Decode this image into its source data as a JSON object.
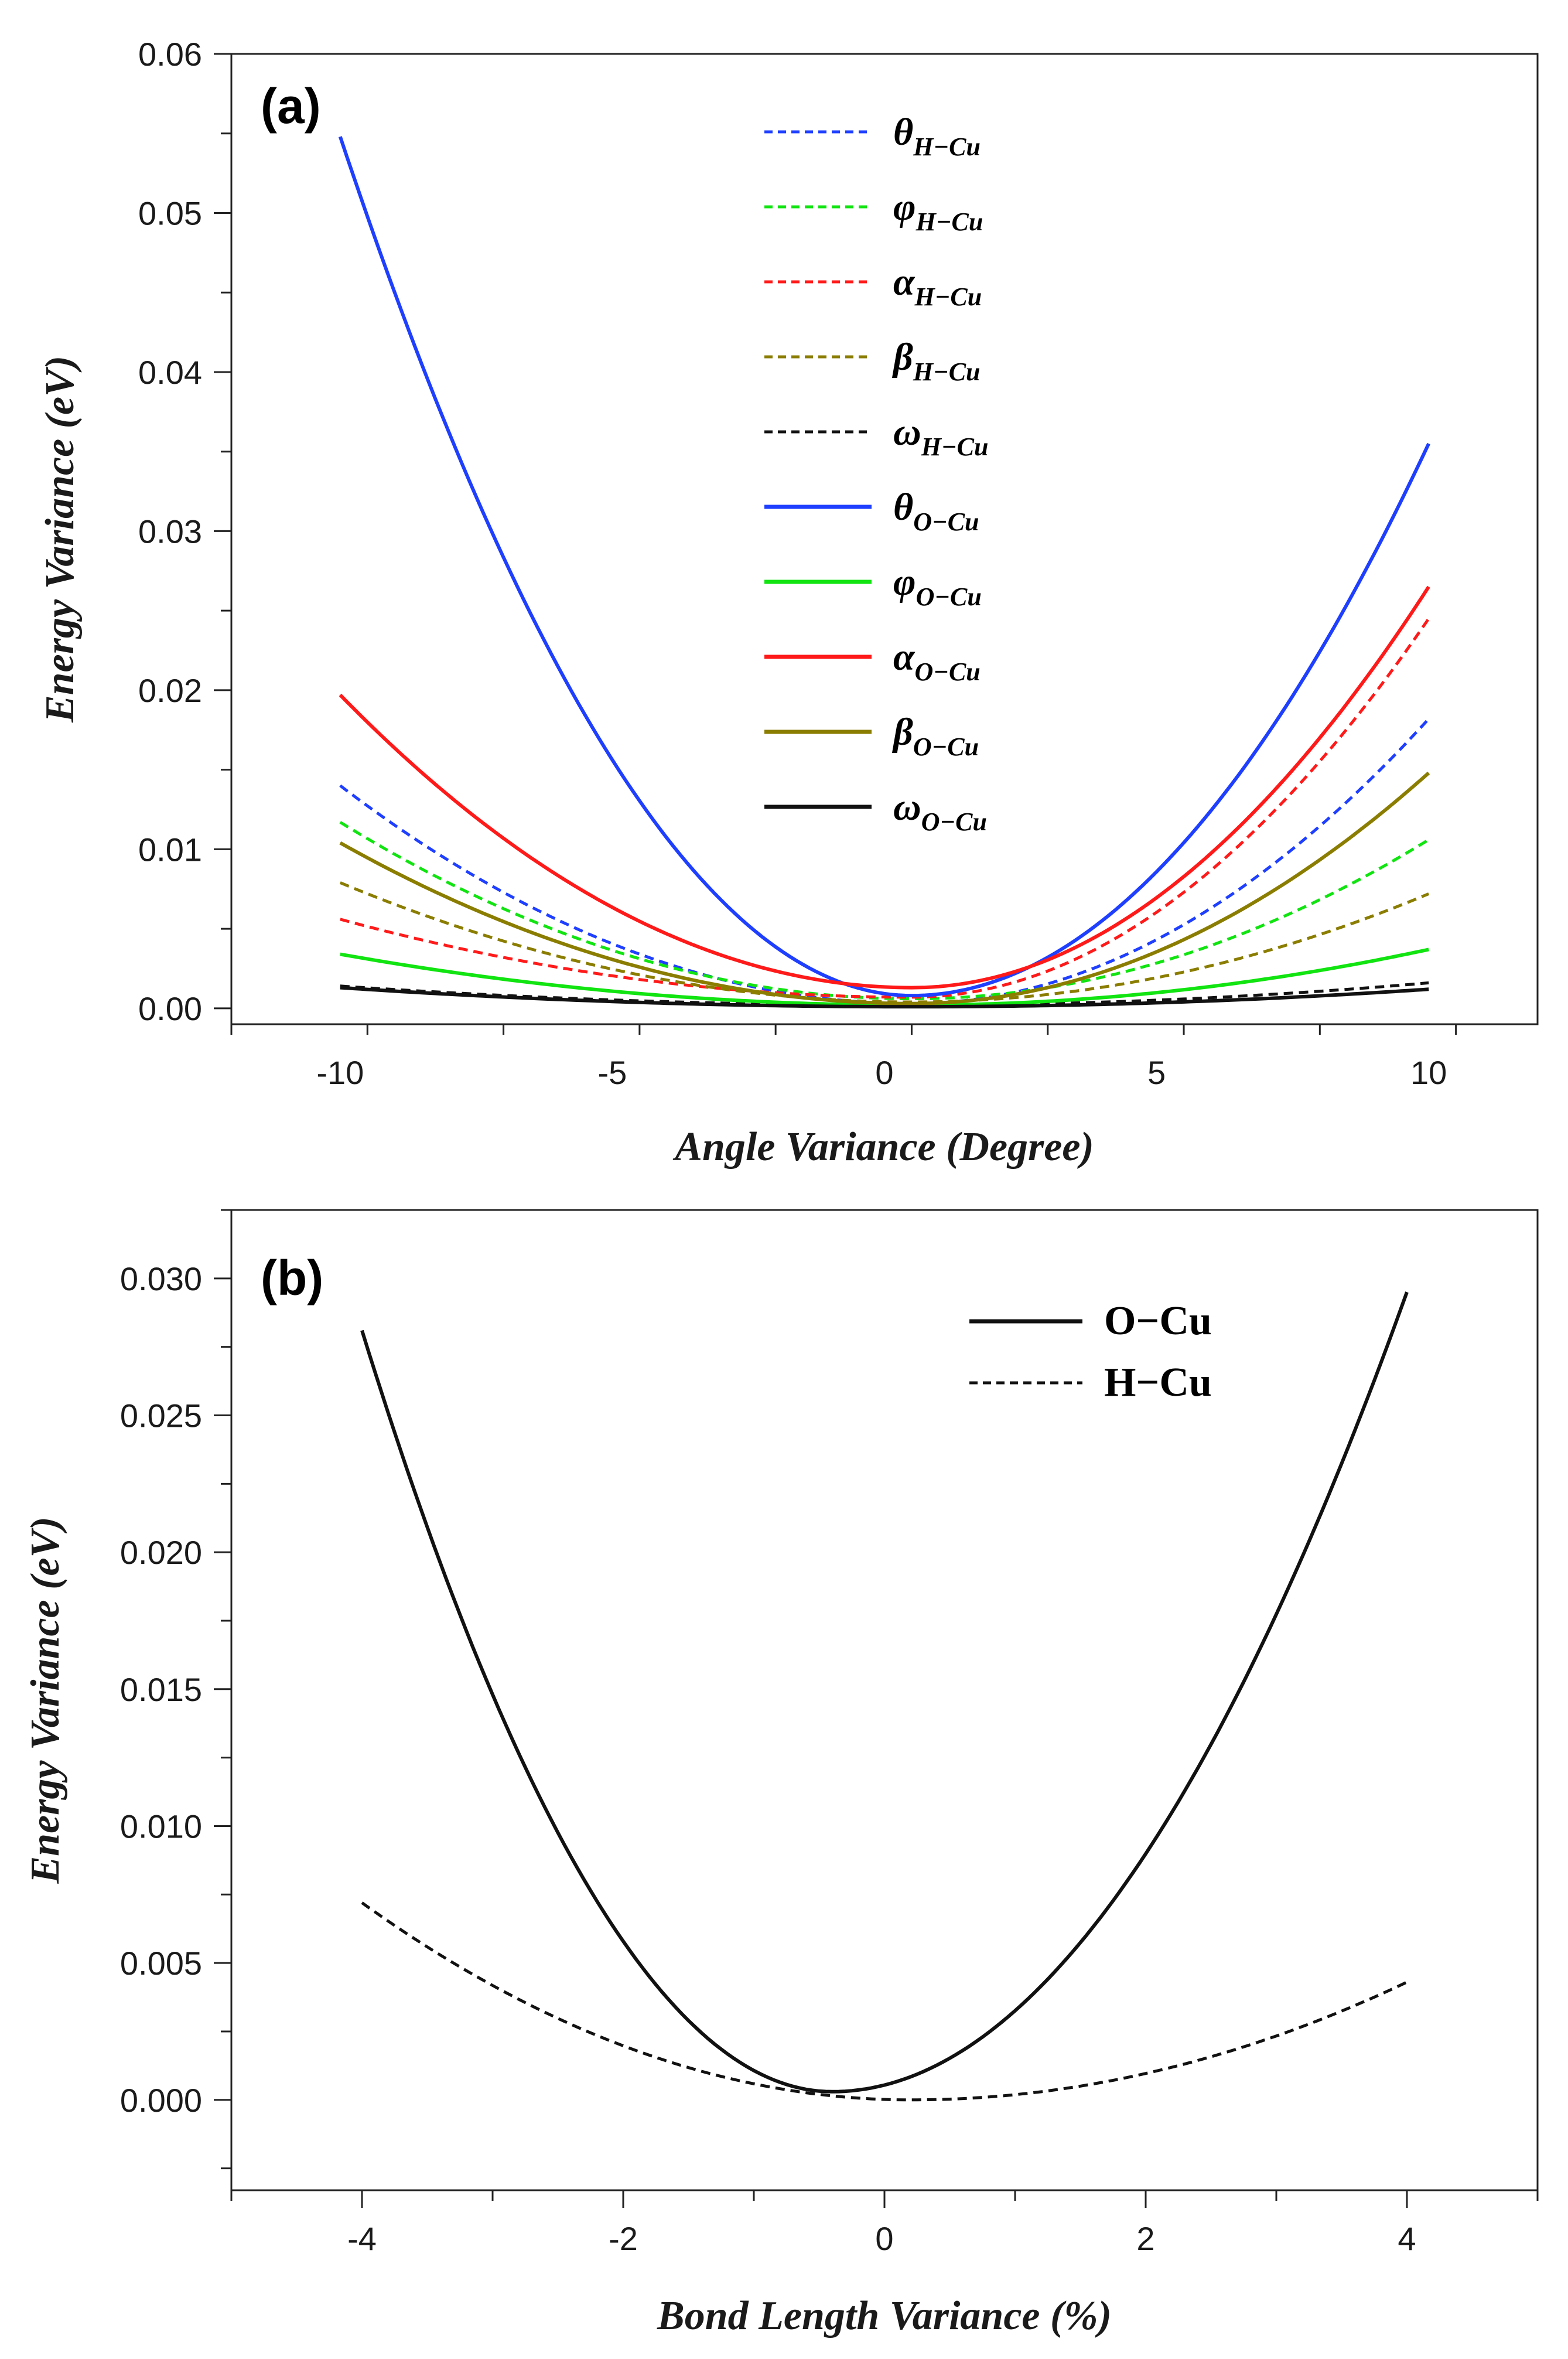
{
  "chart_data": [
    {
      "id": "a",
      "type": "line",
      "panel_label": "(a)",
      "xlabel": "Angle Variance (Degree)",
      "ylabel": "Energy Variance (eV)",
      "xlim": [
        -12,
        12
      ],
      "ylim": [
        -0.001,
        0.06
      ],
      "x_ticks": [
        -10,
        -5,
        0,
        5,
        10
      ],
      "x_tick_labels": [
        "-10",
        "-5",
        "0",
        "5",
        "10"
      ],
      "y_ticks": [
        0,
        0.01,
        0.02,
        0.03,
        0.04,
        0.05,
        0.06
      ],
      "y_tick_labels": [
        "0.00",
        "0.01",
        "0.02",
        "0.03",
        "0.04",
        "0.05",
        "0.06"
      ],
      "legend_position": "top-center",
      "series": [
        {
          "name": "θ",
          "subscript": "H−Cu",
          "color": "#1f3fff",
          "dash": true,
          "points": [
            [
              -10,
              0.014
            ],
            [
              0.5,
              0.0003
            ],
            [
              10,
              0.0182
            ]
          ]
        },
        {
          "name": "φ",
          "subscript": "H−Cu",
          "color": "#11e411",
          "dash": true,
          "points": [
            [
              -10,
              0.0117
            ],
            [
              0.5,
              0.0006
            ],
            [
              10,
              0.0106
            ]
          ]
        },
        {
          "name": "α",
          "subscript": "H−Cu",
          "color": "#ff1a1a",
          "dash": true,
          "points": [
            [
              -10,
              0.0056
            ],
            [
              0.5,
              0.0007
            ],
            [
              10,
              0.0245
            ]
          ]
        },
        {
          "name": "β",
          "subscript": "H−Cu",
          "color": "#8a7d00",
          "dash": true,
          "points": [
            [
              -10,
              0.0079
            ],
            [
              0.5,
              0.0004
            ],
            [
              10,
              0.0072
            ]
          ]
        },
        {
          "name": "ω",
          "subscript": "H−Cu",
          "color": "#111111",
          "dash": true,
          "points": [
            [
              -10,
              0.0014
            ],
            [
              0.5,
              0.0002
            ],
            [
              10,
              0.0016
            ]
          ]
        },
        {
          "name": "θ",
          "subscript": "O−Cu",
          "color": "#1f3fff",
          "dash": false,
          "points": [
            [
              -10,
              0.0548
            ],
            [
              0.5,
              0.0008
            ],
            [
              10,
              0.0355
            ]
          ]
        },
        {
          "name": "φ",
          "subscript": "O−Cu",
          "color": "#11e411",
          "dash": false,
          "points": [
            [
              -10,
              0.0034
            ],
            [
              0.5,
              0.0002
            ],
            [
              10,
              0.0037
            ]
          ]
        },
        {
          "name": "α",
          "subscript": "O−Cu",
          "color": "#ff1a1a",
          "dash": false,
          "points": [
            [
              -10,
              0.0197
            ],
            [
              0.5,
              0.0013
            ],
            [
              10,
              0.0265
            ]
          ]
        },
        {
          "name": "β",
          "subscript": "O−Cu",
          "color": "#8a7d00",
          "dash": false,
          "points": [
            [
              -10,
              0.0104
            ],
            [
              0.5,
              0.0003
            ],
            [
              10,
              0.0148
            ]
          ]
        },
        {
          "name": "ω",
          "subscript": "O−Cu",
          "color": "#111111",
          "dash": false,
          "points": [
            [
              -10,
              0.0013
            ],
            [
              0.5,
              0.0001
            ],
            [
              10,
              0.0012
            ]
          ]
        }
      ]
    },
    {
      "id": "b",
      "type": "line",
      "panel_label": "(b)",
      "xlabel": "Bond Length Variance (%)",
      "ylabel": "Energy Variance (eV)",
      "xlim": [
        -5,
        5
      ],
      "ylim": [
        -0.0033,
        0.0325
      ],
      "x_ticks": [
        -4,
        -2,
        0,
        2,
        4
      ],
      "x_tick_labels": [
        "-4",
        "-2",
        "0",
        "2",
        "4"
      ],
      "y_ticks": [
        0,
        0.005,
        0.01,
        0.015,
        0.02,
        0.025,
        0.03
      ],
      "y_tick_labels": [
        "0.000",
        "0.005",
        "0.010",
        "0.015",
        "0.020",
        "0.025",
        "0.030"
      ],
      "legend_position": "top-right",
      "series": [
        {
          "name": "O−Cu",
          "color": "#111111",
          "dash": false,
          "points": [
            [
              -4,
              0.0281
            ],
            [
              -0.4,
              0.0003
            ],
            [
              4,
              0.0295
            ]
          ]
        },
        {
          "name": "H−Cu",
          "color": "#111111",
          "dash": true,
          "points": [
            [
              -4,
              0.0072
            ],
            [
              0.2,
              0.0
            ],
            [
              4,
              0.0043
            ]
          ]
        }
      ]
    }
  ]
}
